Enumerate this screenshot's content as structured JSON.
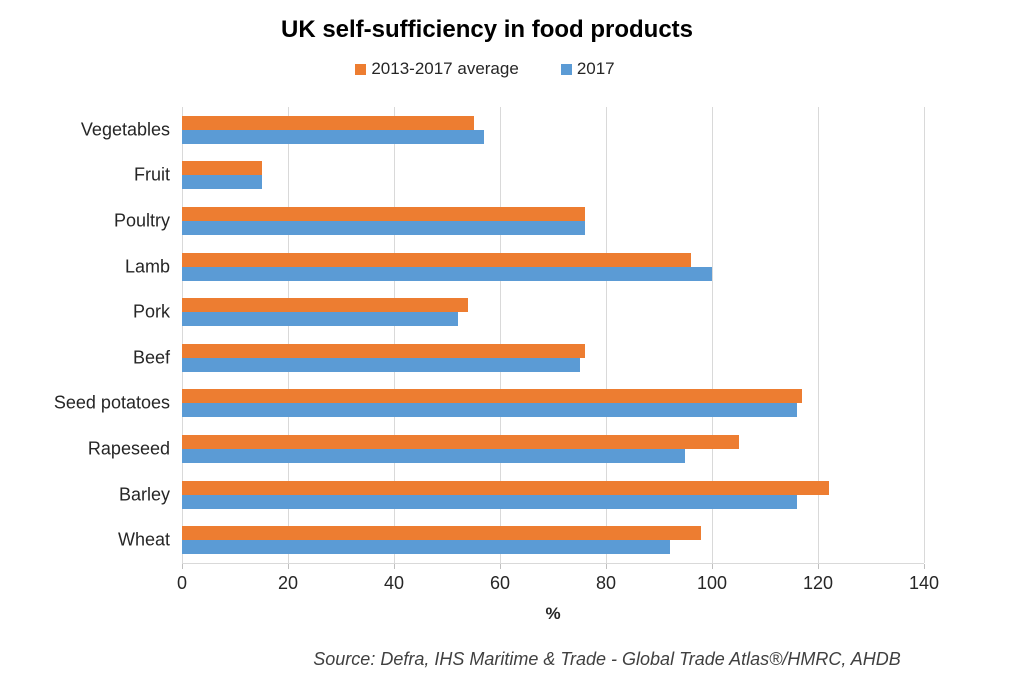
{
  "chart_data": {
    "type": "bar",
    "orientation": "horizontal",
    "title": "UK self-sufficiency in food products",
    "categories": [
      "Vegetables",
      "Fruit",
      "Poultry",
      "Lamb",
      "Pork",
      "Beef",
      "Seed potatoes",
      "Rapeseed",
      "Barley",
      "Wheat"
    ],
    "series": [
      {
        "name": "2013-2017 average",
        "color": "#ED7D31",
        "values": [
          55,
          15,
          76,
          96,
          54,
          76,
          117,
          105,
          122,
          98
        ]
      },
      {
        "name": "2017",
        "color": "#5B9BD5",
        "values": [
          57,
          15,
          76,
          100,
          52,
          75,
          116,
          95,
          116,
          92
        ]
      }
    ],
    "xlabel": "%",
    "xlim": [
      0,
      140
    ],
    "xticks": [
      0,
      20,
      40,
      60,
      80,
      100,
      120,
      140
    ],
    "grid": "vertical",
    "legend_position": "top",
    "source": "Source: Defra, IHS Maritime & Trade - Global Trade Atlas®/HMRC, AHDB"
  },
  "colors": {
    "gridline": "#D9D9D9",
    "axis_tick": "#BFBFBF",
    "label_text": "#262626",
    "source_text": "#404040"
  }
}
